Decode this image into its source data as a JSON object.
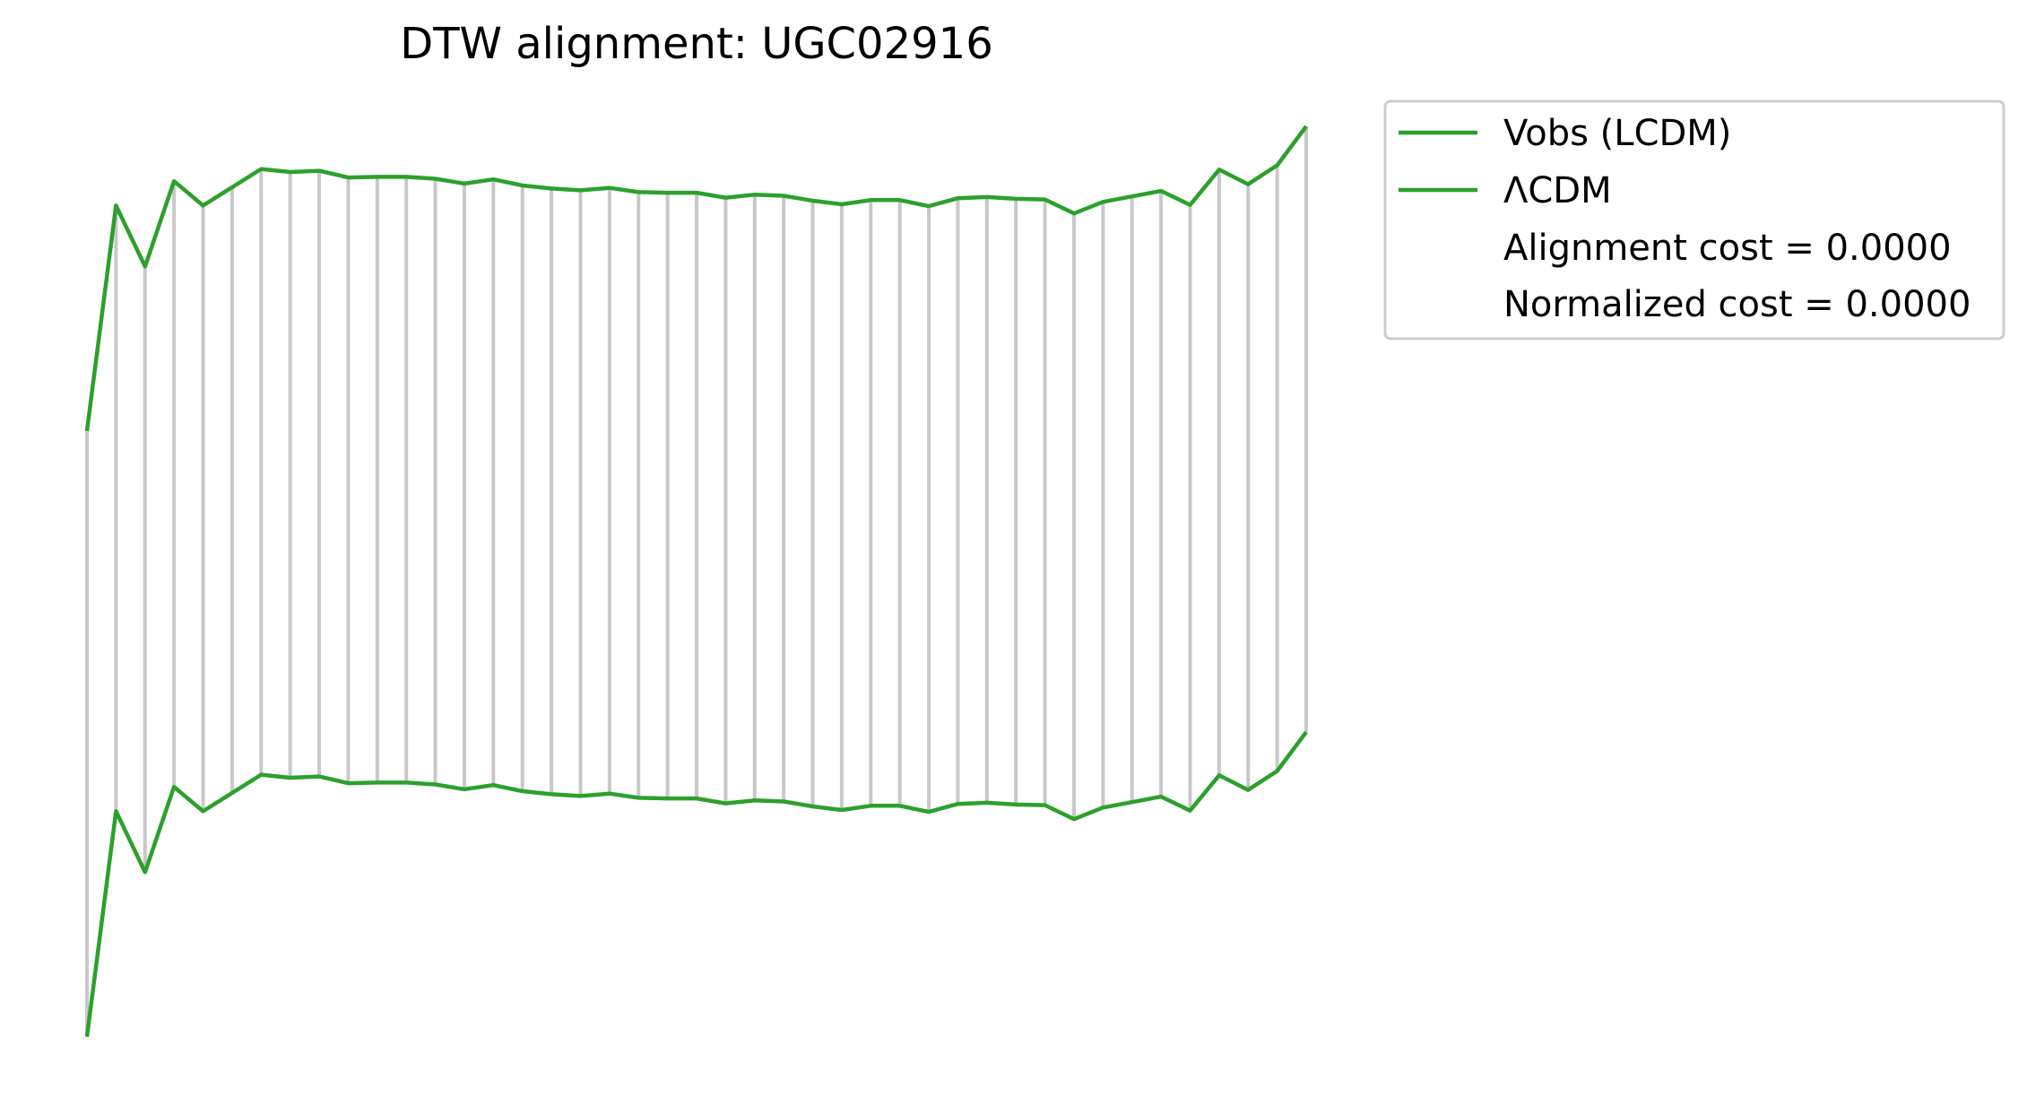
{
  "chart_data": {
    "type": "line",
    "title": "DTW alignment: UGC02916",
    "xlabel": "",
    "ylabel": "",
    "axes_visible": false,
    "grid": false,
    "legend_position": "outside-top-right",
    "series": [
      {
        "name": "Vobs (LCDM)",
        "color": "#2ca02c",
        "values": [
          0.5,
          0.87,
          0.77,
          0.91,
          0.87,
          0.9,
          0.93,
          0.925,
          0.927,
          0.916,
          0.917,
          0.917,
          0.914,
          0.906,
          0.913,
          0.903,
          0.898,
          0.895,
          0.899,
          0.892,
          0.891,
          0.891,
          0.883,
          0.888,
          0.886,
          0.878,
          0.872,
          0.879,
          0.879,
          0.869,
          0.882,
          0.884,
          0.881,
          0.88,
          0.857,
          0.876,
          0.885,
          0.894,
          0.871,
          0.929,
          0.905,
          0.936,
          1.0
        ]
      },
      {
        "name": "ΛCDM",
        "color": "#2ca02c",
        "values": [
          0.5,
          0.87,
          0.77,
          0.91,
          0.87,
          0.9,
          0.93,
          0.925,
          0.927,
          0.916,
          0.917,
          0.917,
          0.914,
          0.906,
          0.913,
          0.903,
          0.898,
          0.895,
          0.899,
          0.892,
          0.891,
          0.891,
          0.883,
          0.888,
          0.886,
          0.878,
          0.872,
          0.879,
          0.879,
          0.869,
          0.882,
          0.884,
          0.881,
          0.88,
          0.857,
          0.876,
          0.885,
          0.894,
          0.871,
          0.929,
          0.905,
          0.936,
          1.0
        ]
      }
    ],
    "connector_color": "#c8c8c8",
    "legend": {
      "entries": [
        "Vobs (LCDM)",
        "ΛCDM"
      ],
      "annotations": [
        "Alignment cost = 0.0000",
        "Normalized cost = 0.0000"
      ]
    }
  }
}
